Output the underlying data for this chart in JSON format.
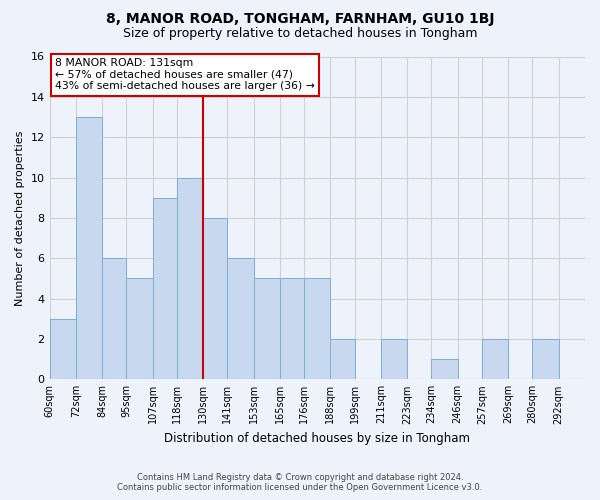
{
  "title": "8, MANOR ROAD, TONGHAM, FARNHAM, GU10 1BJ",
  "subtitle": "Size of property relative to detached houses in Tongham",
  "xlabel": "Distribution of detached houses by size in Tongham",
  "ylabel": "Number of detached properties",
  "footer_line1": "Contains HM Land Registry data © Crown copyright and database right 2024.",
  "footer_line2": "Contains public sector information licensed under the Open Government Licence v3.0.",
  "bin_labels": [
    "60sqm",
    "72sqm",
    "84sqm",
    "95sqm",
    "107sqm",
    "118sqm",
    "130sqm",
    "141sqm",
    "153sqm",
    "165sqm",
    "176sqm",
    "188sqm",
    "199sqm",
    "211sqm",
    "223sqm",
    "234sqm",
    "246sqm",
    "257sqm",
    "269sqm",
    "280sqm",
    "292sqm"
  ],
  "bin_edges": [
    60,
    72,
    84,
    95,
    107,
    118,
    130,
    141,
    153,
    165,
    176,
    188,
    199,
    211,
    223,
    234,
    246,
    257,
    269,
    280,
    292
  ],
  "counts": [
    3,
    13,
    6,
    5,
    9,
    10,
    8,
    6,
    5,
    5,
    5,
    2,
    0,
    2,
    0,
    1,
    0,
    2,
    0,
    2,
    0
  ],
  "bar_color": "#c8d9ef",
  "bar_edge_color": "#7aafd4",
  "grid_color": "#d0d0d0",
  "background_color": "#eef2fb",
  "annotation_text_line1": "8 MANOR ROAD: 131sqm",
  "annotation_text_line2": "← 57% of detached houses are smaller (47)",
  "annotation_text_line3": "43% of semi-detached houses are larger (36) →",
  "vline_color": "#cc0000",
  "vline_x": 130,
  "ylim": [
    0,
    16
  ],
  "yticks": [
    0,
    2,
    4,
    6,
    8,
    10,
    12,
    14,
    16
  ]
}
